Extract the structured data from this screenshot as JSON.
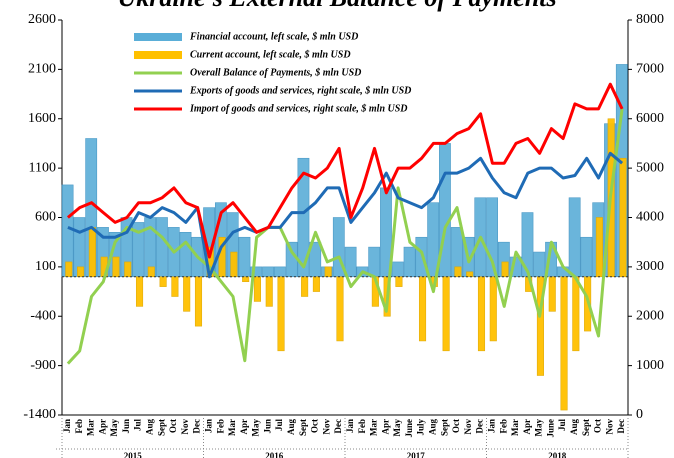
{
  "chart_data": {
    "type": "bar",
    "title": "Ukraine's External Balance of Payments",
    "categories": [
      "Jan",
      "Feb",
      "Mar",
      "Apr",
      "May",
      "Jun",
      "Jul",
      "Aug",
      "Sept",
      "Oct",
      "Nov",
      "Dec",
      "Jan",
      "Feb",
      "Mar",
      "Apr",
      "May",
      "Jun",
      "Jul",
      "Aug",
      "Sept",
      "Oct",
      "Nov",
      "Dec",
      "Jan",
      "Feb",
      "Mar",
      "Apr",
      "May",
      "June",
      "July",
      "Aug",
      "Sept",
      "Oct",
      "Nov",
      "Dec",
      "Jan",
      "Feb",
      "Mar",
      "Apr",
      "May",
      "June",
      "Jul",
      "Aug",
      "Sept",
      "Oct",
      "Nov",
      "Dec"
    ],
    "years": [
      "2015",
      "2016",
      "2017",
      "2018"
    ],
    "ylim": [
      -1400,
      2600
    ],
    "yticks": [
      -1400,
      -900,
      -400,
      100,
      600,
      1100,
      1600,
      2100,
      2600
    ],
    "y2lim": [
      0,
      8000
    ],
    "y2ticks": [
      0,
      1000,
      2000,
      3000,
      4000,
      5000,
      6000,
      7000,
      8000
    ],
    "series": [
      {
        "name": "Financial account, left scale, $ mln USD",
        "type": "bar",
        "axis": "y",
        "color": "#5aaed8",
        "values": [
          930,
          600,
          1400,
          500,
          450,
          600,
          550,
          600,
          600,
          500,
          450,
          400,
          700,
          750,
          650,
          400,
          100,
          100,
          100,
          350,
          1200,
          350,
          100,
          600,
          300,
          100,
          300,
          900,
          150,
          300,
          400,
          750,
          1350,
          500,
          400,
          800,
          800,
          350,
          200,
          650,
          250,
          350,
          100,
          800,
          400,
          750,
          1550,
          2150
        ]
      },
      {
        "name": "Current account, left scale, $ mln USD",
        "type": "bar",
        "axis": "y",
        "color": "#ffc000",
        "values": [
          150,
          100,
          500,
          200,
          200,
          150,
          -300,
          100,
          -100,
          -200,
          -350,
          -500,
          300,
          400,
          250,
          -50,
          -250,
          -300,
          -750,
          0,
          -200,
          -150,
          100,
          -650,
          0,
          0,
          -300,
          -400,
          -100,
          0,
          -650,
          -100,
          -750,
          100,
          50,
          -750,
          -650,
          150,
          0,
          -150,
          -1000,
          -350,
          -1350,
          -750,
          -550,
          600,
          1600,
          1200
        ]
      },
      {
        "name": "Overall Balance of Payments, $ mln USD",
        "type": "line",
        "axis": "y",
        "color": "#92d050",
        "values": [
          -880,
          -750,
          -200,
          -50,
          350,
          500,
          450,
          500,
          400,
          250,
          350,
          200,
          100,
          -50,
          -200,
          -850,
          400,
          500,
          500,
          250,
          100,
          450,
          150,
          200,
          -100,
          50,
          0,
          -350,
          900,
          350,
          250,
          -150,
          500,
          700,
          150,
          400,
          150,
          -300,
          250,
          50,
          -400,
          350,
          100,
          0,
          -200,
          -600,
          800,
          1700
        ]
      },
      {
        "name": "Exports of goods and services, right scale, $ mln USD",
        "type": "line",
        "axis": "y2",
        "color": "#1f6bb5",
        "values": [
          3800,
          3700,
          3800,
          3600,
          3600,
          3700,
          4100,
          4000,
          4200,
          4100,
          3900,
          4200,
          2800,
          3400,
          3700,
          3800,
          3700,
          3800,
          3800,
          4100,
          4100,
          4300,
          4600,
          4600,
          3900,
          4200,
          4500,
          4900,
          4400,
          4300,
          4200,
          4400,
          4900,
          4900,
          5000,
          5200,
          4800,
          4500,
          4400,
          4900,
          5000,
          5000,
          4800,
          4850,
          5200,
          4800,
          5300,
          5100
        ]
      },
      {
        "name": "Import of goods and services, right scale, $ mln USD",
        "type": "line",
        "axis": "y2",
        "color": "#ff0000",
        "values": [
          4000,
          4200,
          4300,
          4100,
          3900,
          4000,
          4300,
          4300,
          4400,
          4600,
          4300,
          4200,
          3200,
          4100,
          4300,
          4000,
          3700,
          3800,
          4200,
          4600,
          4900,
          4800,
          5000,
          5400,
          4000,
          4600,
          5400,
          4500,
          5000,
          5000,
          5200,
          5500,
          5500,
          5700,
          5800,
          6100,
          5100,
          5100,
          5500,
          5600,
          5300,
          5800,
          5600,
          6300,
          6200,
          6200,
          6700,
          6200
        ]
      }
    ]
  }
}
